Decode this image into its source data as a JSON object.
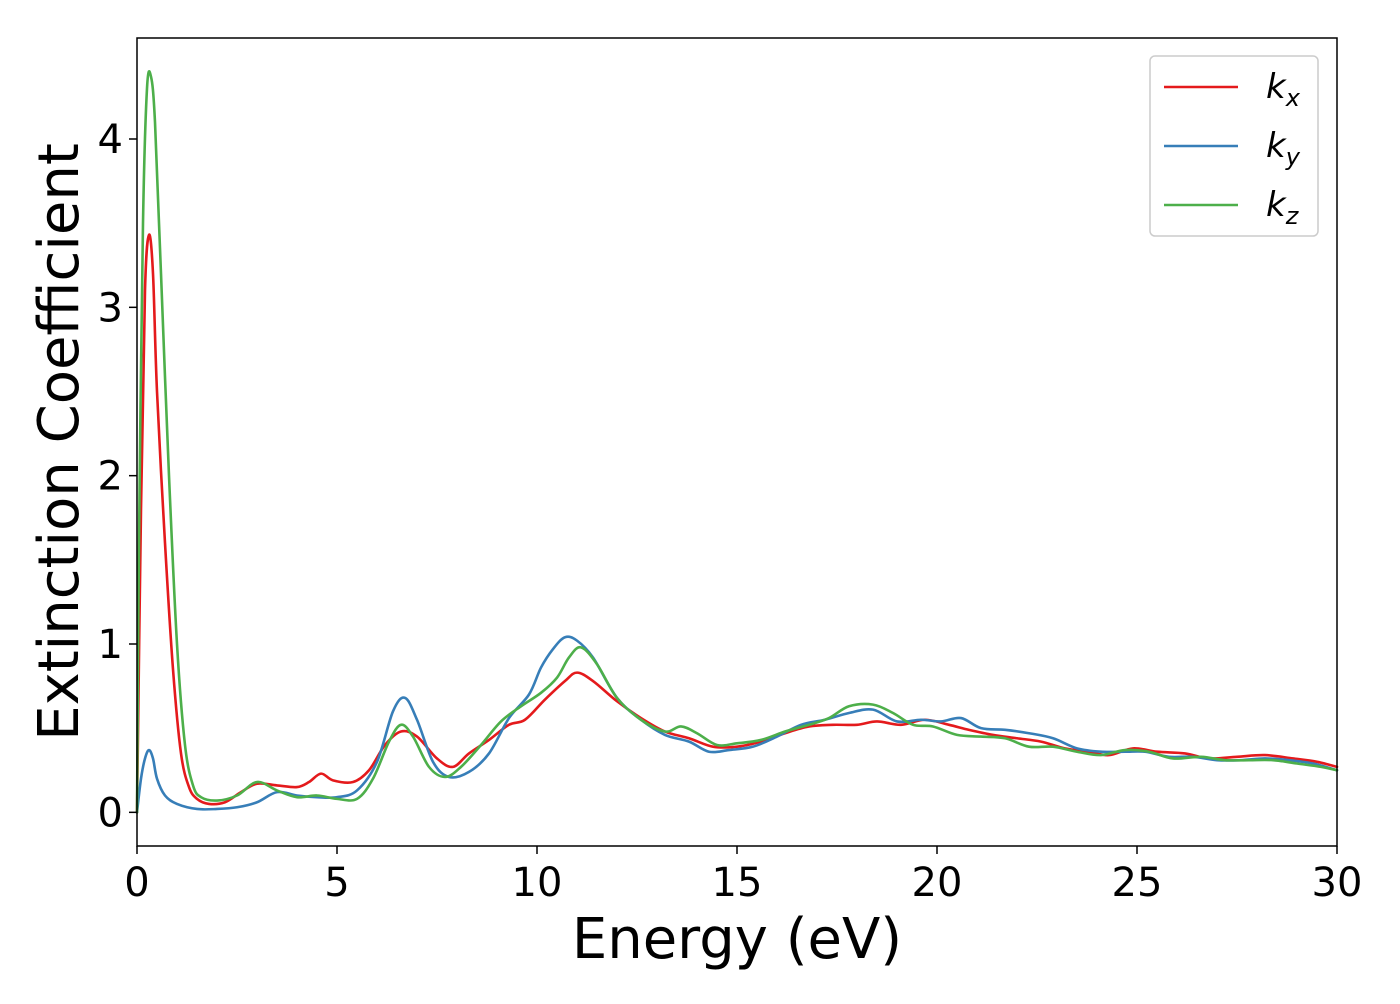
{
  "chart_data": {
    "type": "line",
    "xlabel": "Energy (eV)",
    "ylabel": "Extinction Coefficient",
    "xlim": [
      0,
      30
    ],
    "ylim": [
      -0.2,
      4.6
    ],
    "x_ticks": [
      0,
      5,
      10,
      15,
      20,
      25,
      30
    ],
    "y_ticks": [
      0,
      1,
      2,
      3,
      4
    ],
    "grid": false,
    "legend_position": "top-right",
    "series": [
      {
        "name": "k_x",
        "label_main": "k",
        "label_sub": "x",
        "color": "#e41a1c",
        "points": [
          [
            0,
            0
          ],
          [
            0.1,
            1.8
          ],
          [
            0.2,
            3.1
          ],
          [
            0.3,
            3.43
          ],
          [
            0.4,
            3.2
          ],
          [
            0.5,
            2.5
          ],
          [
            0.7,
            1.6
          ],
          [
            0.9,
            0.85
          ],
          [
            1.1,
            0.35
          ],
          [
            1.3,
            0.15
          ],
          [
            1.5,
            0.08
          ],
          [
            1.8,
            0.05
          ],
          [
            2.2,
            0.06
          ],
          [
            2.6,
            0.12
          ],
          [
            3.0,
            0.17
          ],
          [
            3.5,
            0.16
          ],
          [
            4.0,
            0.15
          ],
          [
            4.3,
            0.18
          ],
          [
            4.6,
            0.23
          ],
          [
            4.9,
            0.19
          ],
          [
            5.4,
            0.18
          ],
          [
            5.8,
            0.25
          ],
          [
            6.2,
            0.4
          ],
          [
            6.6,
            0.48
          ],
          [
            7.0,
            0.45
          ],
          [
            7.5,
            0.32
          ],
          [
            7.9,
            0.27
          ],
          [
            8.3,
            0.35
          ],
          [
            8.8,
            0.43
          ],
          [
            9.3,
            0.52
          ],
          [
            9.7,
            0.55
          ],
          [
            10.2,
            0.67
          ],
          [
            10.7,
            0.78
          ],
          [
            11.0,
            0.83
          ],
          [
            11.4,
            0.78
          ],
          [
            12.0,
            0.66
          ],
          [
            12.6,
            0.56
          ],
          [
            13.2,
            0.48
          ],
          [
            13.8,
            0.44
          ],
          [
            14.4,
            0.39
          ],
          [
            15.0,
            0.39
          ],
          [
            15.6,
            0.42
          ],
          [
            16.2,
            0.47
          ],
          [
            16.8,
            0.51
          ],
          [
            17.4,
            0.52
          ],
          [
            18.0,
            0.52
          ],
          [
            18.5,
            0.54
          ],
          [
            19.1,
            0.52
          ],
          [
            19.7,
            0.55
          ],
          [
            20.3,
            0.52
          ],
          [
            20.8,
            0.49
          ],
          [
            21.4,
            0.46
          ],
          [
            22.0,
            0.44
          ],
          [
            22.6,
            0.42
          ],
          [
            23.2,
            0.38
          ],
          [
            23.8,
            0.36
          ],
          [
            24.3,
            0.34
          ],
          [
            24.9,
            0.38
          ],
          [
            25.5,
            0.36
          ],
          [
            26.2,
            0.35
          ],
          [
            26.8,
            0.32
          ],
          [
            27.5,
            0.33
          ],
          [
            28.2,
            0.34
          ],
          [
            28.9,
            0.32
          ],
          [
            29.5,
            0.3
          ],
          [
            30.0,
            0.27
          ]
        ]
      },
      {
        "name": "k_y",
        "label_main": "k",
        "label_sub": "y",
        "color": "#377eb8",
        "points": [
          [
            0,
            0
          ],
          [
            0.1,
            0.2
          ],
          [
            0.2,
            0.32
          ],
          [
            0.3,
            0.37
          ],
          [
            0.4,
            0.32
          ],
          [
            0.5,
            0.2
          ],
          [
            0.7,
            0.1
          ],
          [
            1.0,
            0.05
          ],
          [
            1.5,
            0.02
          ],
          [
            2.0,
            0.02
          ],
          [
            2.5,
            0.03
          ],
          [
            3.0,
            0.06
          ],
          [
            3.5,
            0.12
          ],
          [
            4.0,
            0.1
          ],
          [
            4.5,
            0.09
          ],
          [
            5.0,
            0.09
          ],
          [
            5.5,
            0.13
          ],
          [
            6.0,
            0.3
          ],
          [
            6.4,
            0.6
          ],
          [
            6.7,
            0.68
          ],
          [
            7.0,
            0.55
          ],
          [
            7.4,
            0.3
          ],
          [
            7.8,
            0.21
          ],
          [
            8.3,
            0.24
          ],
          [
            8.8,
            0.35
          ],
          [
            9.3,
            0.56
          ],
          [
            9.8,
            0.7
          ],
          [
            10.1,
            0.86
          ],
          [
            10.4,
            0.97
          ],
          [
            10.7,
            1.04
          ],
          [
            11.0,
            1.02
          ],
          [
            11.4,
            0.92
          ],
          [
            12.0,
            0.68
          ],
          [
            12.6,
            0.55
          ],
          [
            13.2,
            0.46
          ],
          [
            13.8,
            0.42
          ],
          [
            14.3,
            0.36
          ],
          [
            14.8,
            0.37
          ],
          [
            15.4,
            0.39
          ],
          [
            16.0,
            0.45
          ],
          [
            16.6,
            0.52
          ],
          [
            17.2,
            0.55
          ],
          [
            17.8,
            0.59
          ],
          [
            18.4,
            0.61
          ],
          [
            19.0,
            0.54
          ],
          [
            19.6,
            0.55
          ],
          [
            20.1,
            0.54
          ],
          [
            20.6,
            0.56
          ],
          [
            21.1,
            0.5
          ],
          [
            21.7,
            0.49
          ],
          [
            22.3,
            0.47
          ],
          [
            22.9,
            0.44
          ],
          [
            23.5,
            0.38
          ],
          [
            24.1,
            0.36
          ],
          [
            24.7,
            0.36
          ],
          [
            25.2,
            0.36
          ],
          [
            25.8,
            0.33
          ],
          [
            26.4,
            0.33
          ],
          [
            27.0,
            0.31
          ],
          [
            27.6,
            0.31
          ],
          [
            28.2,
            0.32
          ],
          [
            28.8,
            0.31
          ],
          [
            29.4,
            0.29
          ],
          [
            30.0,
            0.25
          ]
        ]
      },
      {
        "name": "k_z",
        "label_main": "k",
        "label_sub": "z",
        "color": "#4daf4a",
        "points": [
          [
            0,
            0
          ],
          [
            0.05,
            1.6
          ],
          [
            0.15,
            3.5
          ],
          [
            0.25,
            4.3
          ],
          [
            0.35,
            4.37
          ],
          [
            0.45,
            4.1
          ],
          [
            0.6,
            3.2
          ],
          [
            0.8,
            2.0
          ],
          [
            1.0,
            1.0
          ],
          [
            1.2,
            0.4
          ],
          [
            1.4,
            0.16
          ],
          [
            1.6,
            0.09
          ],
          [
            2.0,
            0.07
          ],
          [
            2.5,
            0.1
          ],
          [
            3.0,
            0.18
          ],
          [
            3.5,
            0.13
          ],
          [
            4.0,
            0.09
          ],
          [
            4.5,
            0.1
          ],
          [
            5.0,
            0.08
          ],
          [
            5.5,
            0.08
          ],
          [
            5.9,
            0.2
          ],
          [
            6.3,
            0.42
          ],
          [
            6.6,
            0.52
          ],
          [
            6.9,
            0.45
          ],
          [
            7.3,
            0.27
          ],
          [
            7.7,
            0.21
          ],
          [
            8.1,
            0.27
          ],
          [
            8.6,
            0.4
          ],
          [
            9.1,
            0.54
          ],
          [
            9.6,
            0.63
          ],
          [
            10.1,
            0.71
          ],
          [
            10.5,
            0.8
          ],
          [
            10.8,
            0.92
          ],
          [
            11.1,
            0.98
          ],
          [
            11.5,
            0.88
          ],
          [
            12.0,
            0.68
          ],
          [
            12.6,
            0.55
          ],
          [
            13.2,
            0.48
          ],
          [
            13.6,
            0.51
          ],
          [
            14.0,
            0.47
          ],
          [
            14.5,
            0.4
          ],
          [
            15.0,
            0.41
          ],
          [
            15.6,
            0.43
          ],
          [
            16.2,
            0.48
          ],
          [
            16.8,
            0.52
          ],
          [
            17.3,
            0.56
          ],
          [
            17.8,
            0.63
          ],
          [
            18.4,
            0.64
          ],
          [
            18.9,
            0.59
          ],
          [
            19.4,
            0.52
          ],
          [
            19.9,
            0.51
          ],
          [
            20.5,
            0.46
          ],
          [
            21.1,
            0.45
          ],
          [
            21.7,
            0.44
          ],
          [
            22.3,
            0.39
          ],
          [
            22.9,
            0.39
          ],
          [
            23.5,
            0.36
          ],
          [
            24.1,
            0.34
          ],
          [
            24.7,
            0.37
          ],
          [
            25.3,
            0.36
          ],
          [
            25.9,
            0.32
          ],
          [
            26.6,
            0.33
          ],
          [
            27.2,
            0.31
          ],
          [
            27.8,
            0.31
          ],
          [
            28.4,
            0.31
          ],
          [
            29.0,
            0.29
          ],
          [
            29.6,
            0.27
          ],
          [
            30.0,
            0.25
          ]
        ]
      }
    ]
  }
}
